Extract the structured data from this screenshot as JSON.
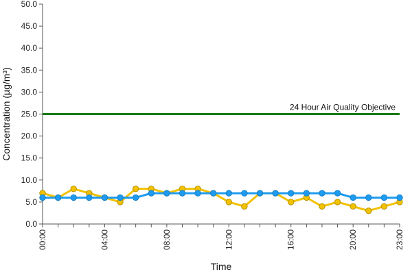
{
  "chart_data": {
    "type": "line",
    "title": "",
    "xlabel": "Time",
    "ylabel": "Concentration (µg/m³)",
    "ylim": [
      0,
      50
    ],
    "yticks": [
      "0.0",
      "5.0",
      "10.0",
      "15.0",
      "20.0",
      "25.0",
      "30.0",
      "35.0",
      "40.0",
      "45.0",
      "50.0"
    ],
    "x": [
      "00:00",
      "01:00",
      "02:00",
      "03:00",
      "04:00",
      "05:00",
      "06:00",
      "07:00",
      "08:00",
      "09:00",
      "10:00",
      "11:00",
      "12:00",
      "13:00",
      "14:00",
      "15:00",
      "16:00",
      "17:00",
      "18:00",
      "19:00",
      "20:00",
      "21:00",
      "22:00",
      "23:00"
    ],
    "xtick_labels": [
      "00:00",
      "04:00",
      "08:00",
      "12:00",
      "16:00",
      "20:00",
      "23:00"
    ],
    "grid": false,
    "legend": "none",
    "series": [
      {
        "color": "#f2c200",
        "values": [
          7,
          6,
          8,
          7,
          6,
          5,
          8,
          8,
          7,
          8,
          8,
          7,
          5,
          4,
          7,
          7,
          5,
          6,
          4,
          5,
          4,
          3,
          4,
          5
        ]
      },
      {
        "color": "#1e9bf0",
        "values": [
          6,
          6,
          6,
          6,
          6,
          6,
          6,
          7,
          7,
          7,
          7,
          7,
          7,
          7,
          7,
          7,
          7,
          7,
          7,
          7,
          6,
          6,
          6,
          6
        ]
      }
    ],
    "reference_line": {
      "value": 25,
      "label": "24 Hour Air Quality Objective",
      "color": "#1a7a1a"
    }
  }
}
